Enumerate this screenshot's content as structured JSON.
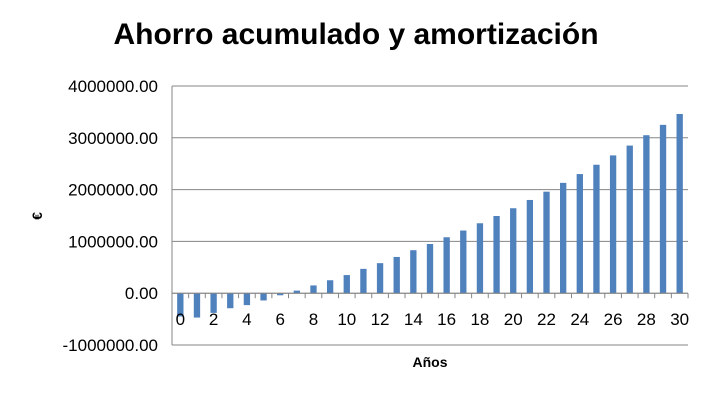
{
  "chart_data": {
    "type": "bar",
    "title": "Ahorro acumulado y amortización",
    "xlabel": "Años",
    "ylabel": "€",
    "ylim": [
      -1000000,
      4000000
    ],
    "y_ticks": [
      -1000000,
      0,
      1000000,
      2000000,
      3000000,
      4000000
    ],
    "y_tick_labels": [
      "-1000000.00",
      "0.00",
      "1000000.00",
      "2000000.00",
      "3000000.00",
      "4000000.00"
    ],
    "x_tick_labels": [
      "0",
      "2",
      "4",
      "6",
      "8",
      "10",
      "12",
      "14",
      "16",
      "18",
      "20",
      "22",
      "24",
      "26",
      "28",
      "30"
    ],
    "categories": [
      "0",
      "1",
      "2",
      "3",
      "4",
      "5",
      "6",
      "7",
      "8",
      "9",
      "10",
      "11",
      "12",
      "13",
      "14",
      "15",
      "16",
      "17",
      "18",
      "19",
      "20",
      "21",
      "22",
      "23",
      "24",
      "25",
      "26",
      "27",
      "28",
      "29",
      "30"
    ],
    "values": [
      -450000,
      -470000,
      -380000,
      -290000,
      -230000,
      -140000,
      -40000,
      50000,
      150000,
      250000,
      350000,
      470000,
      580000,
      700000,
      830000,
      950000,
      1080000,
      1210000,
      1350000,
      1490000,
      1640000,
      1800000,
      1960000,
      2130000,
      2300000,
      2480000,
      2660000,
      2850000,
      3050000,
      3250000,
      3460000
    ],
    "bar_color": "#4f81bd",
    "grid": "horizontal",
    "legend": "none"
  }
}
